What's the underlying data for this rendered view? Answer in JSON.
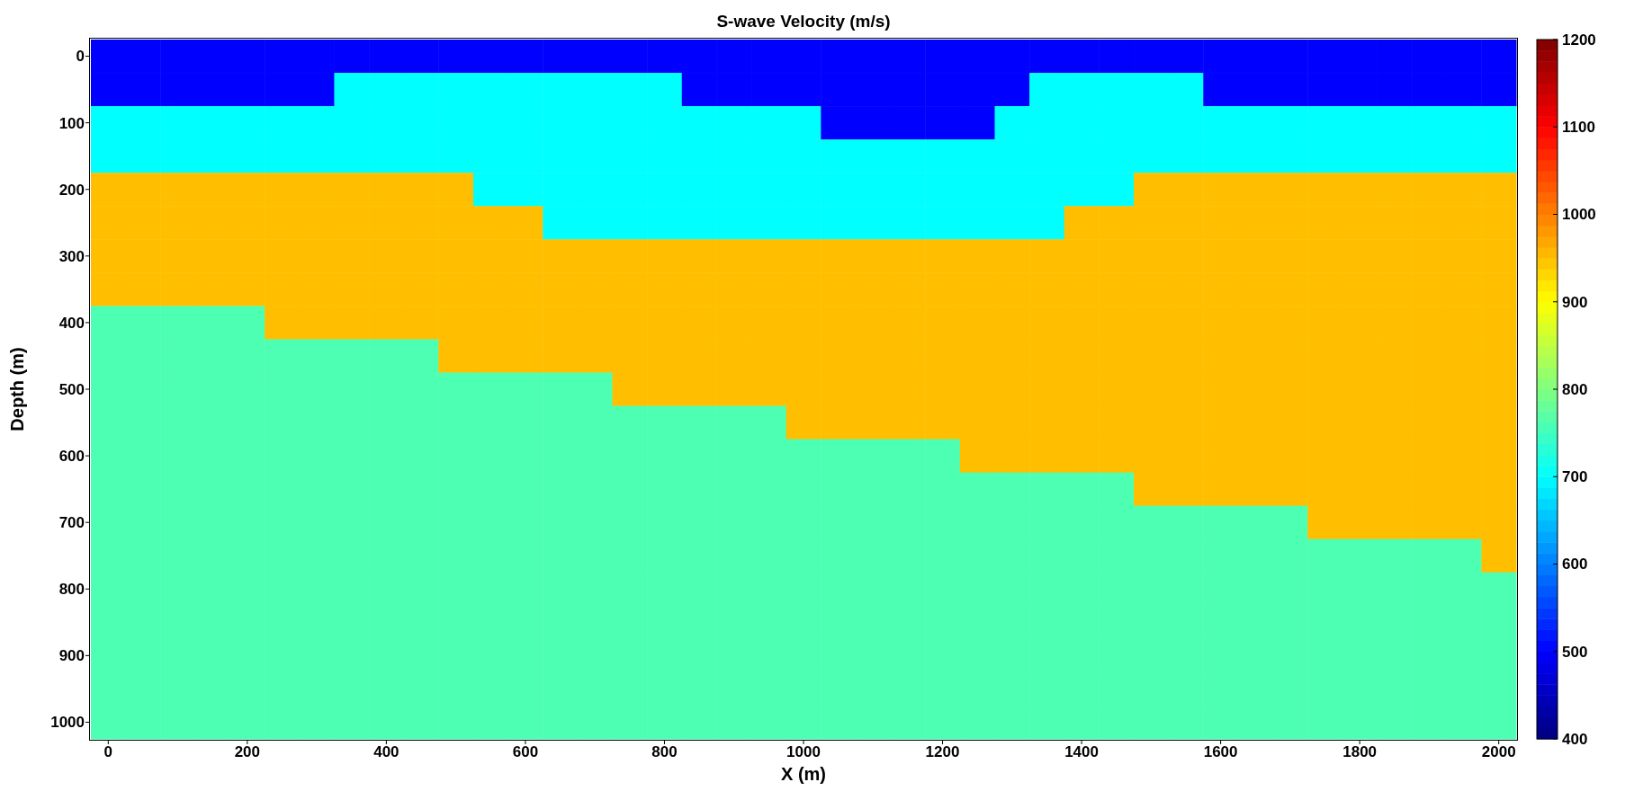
{
  "chart_data": {
    "type": "heatmap",
    "title": "S-wave Velocity (m/s)",
    "xlabel": "X (m)",
    "ylabel": "Depth (m)",
    "categories": [
      "0",
      null,
      null,
      null,
      "200",
      null,
      null,
      null,
      "400",
      null,
      null,
      null,
      "600",
      null,
      null,
      null,
      "800",
      null,
      null,
      null,
      "1000",
      null,
      null,
      null,
      "1200",
      null,
      null,
      null,
      "1400",
      null,
      null,
      null,
      "1600",
      null,
      null,
      null,
      "1800",
      null,
      null,
      null,
      "2000"
    ],
    "y_categories": [
      "0",
      null,
      "100",
      null,
      "200",
      null,
      "300",
      null,
      "400",
      null,
      "500",
      null,
      "600",
      null,
      "700",
      null,
      "800",
      null,
      "900",
      null,
      "1000"
    ],
    "clim": [
      400,
      1200
    ],
    "cticks": [
      400,
      500,
      600,
      700,
      800,
      900,
      1000,
      1100,
      1200
    ],
    "cells": [
      [
        500,
        500,
        500,
        500,
        500,
        500,
        500,
        500,
        500,
        500,
        500,
        500,
        500,
        500,
        500,
        500,
        500,
        500,
        500,
        500,
        500,
        500,
        500,
        500,
        500,
        500,
        500,
        500,
        500,
        500,
        500,
        500,
        500,
        500,
        500,
        500,
        500,
        500,
        500,
        500,
        500
      ],
      [
        500,
        500,
        500,
        500,
        500,
        500,
        500,
        700,
        700,
        700,
        700,
        700,
        700,
        700,
        700,
        700,
        700,
        500,
        500,
        500,
        500,
        500,
        500,
        500,
        500,
        500,
        500,
        700,
        700,
        700,
        700,
        700,
        500,
        500,
        500,
        500,
        500,
        500,
        500,
        500,
        500
      ],
      [
        700,
        700,
        700,
        700,
        700,
        700,
        700,
        700,
        700,
        700,
        700,
        700,
        700,
        700,
        700,
        700,
        700,
        700,
        700,
        700,
        700,
        500,
        500,
        500,
        500,
        500,
        700,
        700,
        700,
        700,
        700,
        700,
        700,
        700,
        700,
        700,
        700,
        700,
        700,
        700,
        700
      ],
      [
        700,
        700,
        700,
        700,
        700,
        700,
        700,
        700,
        700,
        700,
        700,
        700,
        700,
        700,
        700,
        700,
        700,
        700,
        700,
        700,
        700,
        700,
        700,
        700,
        700,
        700,
        700,
        700,
        700,
        700,
        700,
        700,
        700,
        700,
        700,
        700,
        700,
        700,
        700,
        700,
        700
      ],
      [
        950,
        950,
        950,
        950,
        950,
        950,
        950,
        950,
        950,
        950,
        950,
        700,
        700,
        700,
        700,
        700,
        700,
        700,
        700,
        700,
        700,
        700,
        700,
        700,
        700,
        700,
        700,
        700,
        700,
        700,
        950,
        950,
        950,
        950,
        950,
        950,
        950,
        950,
        950,
        950,
        950
      ],
      [
        950,
        950,
        950,
        950,
        950,
        950,
        950,
        950,
        950,
        950,
        950,
        950,
        950,
        700,
        700,
        700,
        700,
        700,
        700,
        700,
        700,
        700,
        700,
        700,
        700,
        700,
        700,
        700,
        950,
        950,
        950,
        950,
        950,
        950,
        950,
        950,
        950,
        950,
        950,
        950,
        950
      ],
      [
        950,
        950,
        950,
        950,
        950,
        950,
        950,
        950,
        950,
        950,
        950,
        950,
        950,
        950,
        950,
        950,
        950,
        950,
        950,
        950,
        950,
        950,
        950,
        950,
        950,
        950,
        950,
        950,
        950,
        950,
        950,
        950,
        950,
        950,
        950,
        950,
        950,
        950,
        950,
        950,
        950
      ],
      [
        950,
        950,
        950,
        950,
        950,
        950,
        950,
        950,
        950,
        950,
        950,
        950,
        950,
        950,
        950,
        950,
        950,
        950,
        950,
        950,
        950,
        950,
        950,
        950,
        950,
        950,
        950,
        950,
        950,
        950,
        950,
        950,
        950,
        950,
        950,
        950,
        950,
        950,
        950,
        950,
        950
      ],
      [
        760,
        760,
        760,
        760,
        760,
        950,
        950,
        950,
        950,
        950,
        950,
        950,
        950,
        950,
        950,
        950,
        950,
        950,
        950,
        950,
        950,
        950,
        950,
        950,
        950,
        950,
        950,
        950,
        950,
        950,
        950,
        950,
        950,
        950,
        950,
        950,
        950,
        950,
        950,
        950,
        950
      ],
      [
        760,
        760,
        760,
        760,
        760,
        760,
        760,
        760,
        760,
        760,
        950,
        950,
        950,
        950,
        950,
        950,
        950,
        950,
        950,
        950,
        950,
        950,
        950,
        950,
        950,
        950,
        950,
        950,
        950,
        950,
        950,
        950,
        950,
        950,
        950,
        950,
        950,
        950,
        950,
        950,
        950
      ],
      [
        760,
        760,
        760,
        760,
        760,
        760,
        760,
        760,
        760,
        760,
        760,
        760,
        760,
        760,
        760,
        950,
        950,
        950,
        950,
        950,
        950,
        950,
        950,
        950,
        950,
        950,
        950,
        950,
        950,
        950,
        950,
        950,
        950,
        950,
        950,
        950,
        950,
        950,
        950,
        950,
        950
      ],
      [
        760,
        760,
        760,
        760,
        760,
        760,
        760,
        760,
        760,
        760,
        760,
        760,
        760,
        760,
        760,
        760,
        760,
        760,
        760,
        760,
        950,
        950,
        950,
        950,
        950,
        950,
        950,
        950,
        950,
        950,
        950,
        950,
        950,
        950,
        950,
        950,
        950,
        950,
        950,
        950,
        950
      ],
      [
        760,
        760,
        760,
        760,
        760,
        760,
        760,
        760,
        760,
        760,
        760,
        760,
        760,
        760,
        760,
        760,
        760,
        760,
        760,
        760,
        760,
        760,
        760,
        760,
        760,
        950,
        950,
        950,
        950,
        950,
        950,
        950,
        950,
        950,
        950,
        950,
        950,
        950,
        950,
        950,
        950
      ],
      [
        760,
        760,
        760,
        760,
        760,
        760,
        760,
        760,
        760,
        760,
        760,
        760,
        760,
        760,
        760,
        760,
        760,
        760,
        760,
        760,
        760,
        760,
        760,
        760,
        760,
        760,
        760,
        760,
        760,
        760,
        950,
        950,
        950,
        950,
        950,
        950,
        950,
        950,
        950,
        950,
        950
      ],
      [
        760,
        760,
        760,
        760,
        760,
        760,
        760,
        760,
        760,
        760,
        760,
        760,
        760,
        760,
        760,
        760,
        760,
        760,
        760,
        760,
        760,
        760,
        760,
        760,
        760,
        760,
        760,
        760,
        760,
        760,
        760,
        760,
        760,
        760,
        760,
        950,
        950,
        950,
        950,
        950,
        950
      ],
      [
        760,
        760,
        760,
        760,
        760,
        760,
        760,
        760,
        760,
        760,
        760,
        760,
        760,
        760,
        760,
        760,
        760,
        760,
        760,
        760,
        760,
        760,
        760,
        760,
        760,
        760,
        760,
        760,
        760,
        760,
        760,
        760,
        760,
        760,
        760,
        760,
        760,
        760,
        760,
        760,
        950
      ],
      [
        760,
        760,
        760,
        760,
        760,
        760,
        760,
        760,
        760,
        760,
        760,
        760,
        760,
        760,
        760,
        760,
        760,
        760,
        760,
        760,
        760,
        760,
        760,
        760,
        760,
        760,
        760,
        760,
        760,
        760,
        760,
        760,
        760,
        760,
        760,
        760,
        760,
        760,
        760,
        760,
        760
      ],
      [
        760,
        760,
        760,
        760,
        760,
        760,
        760,
        760,
        760,
        760,
        760,
        760,
        760,
        760,
        760,
        760,
        760,
        760,
        760,
        760,
        760,
        760,
        760,
        760,
        760,
        760,
        760,
        760,
        760,
        760,
        760,
        760,
        760,
        760,
        760,
        760,
        760,
        760,
        760,
        760,
        760
      ],
      [
        760,
        760,
        760,
        760,
        760,
        760,
        760,
        760,
        760,
        760,
        760,
        760,
        760,
        760,
        760,
        760,
        760,
        760,
        760,
        760,
        760,
        760,
        760,
        760,
        760,
        760,
        760,
        760,
        760,
        760,
        760,
        760,
        760,
        760,
        760,
        760,
        760,
        760,
        760,
        760,
        760
      ],
      [
        760,
        760,
        760,
        760,
        760,
        760,
        760,
        760,
        760,
        760,
        760,
        760,
        760,
        760,
        760,
        760,
        760,
        760,
        760,
        760,
        760,
        760,
        760,
        760,
        760,
        760,
        760,
        760,
        760,
        760,
        760,
        760,
        760,
        760,
        760,
        760,
        760,
        760,
        760,
        760,
        760
      ],
      [
        760,
        760,
        760,
        760,
        760,
        760,
        760,
        760,
        760,
        760,
        760,
        760,
        760,
        760,
        760,
        760,
        760,
        760,
        760,
        760,
        760,
        760,
        760,
        760,
        760,
        760,
        760,
        760,
        760,
        760,
        760,
        760,
        760,
        760,
        760,
        760,
        760,
        760,
        760,
        760,
        760
      ]
    ]
  }
}
